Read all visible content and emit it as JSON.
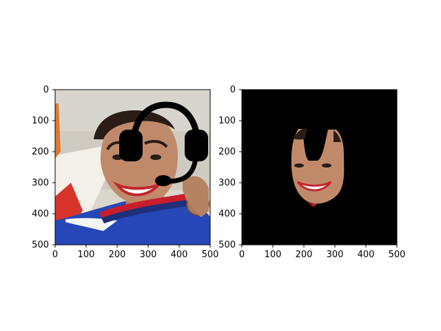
{
  "figure": {
    "background_color": "#ffffff",
    "panels": [
      {
        "id": "left",
        "content": "photo-with-headset-overlay",
        "x_ticks": [
          "0",
          "100",
          "200",
          "300",
          "400",
          "500"
        ],
        "y_ticks": [
          "0",
          "100",
          "200",
          "300",
          "400",
          "500"
        ],
        "image_background": "#d9d6cc"
      },
      {
        "id": "right",
        "content": "masked-face",
        "x_ticks": [
          "0",
          "100",
          "200",
          "300",
          "400",
          "500"
        ],
        "y_ticks": [
          "0",
          "100",
          "200",
          "300",
          "400",
          "500"
        ],
        "image_background": "#000000"
      }
    ],
    "headset_icon": "headset-icon",
    "colors": {
      "axis": "#000000",
      "skin": "#c08a6a",
      "hair": "#2a1c17",
      "shirt": "#2547b8",
      "ribbon_red": "#c81e2b",
      "ribbon_blue": "#1f2f7a",
      "medal": "#a77b55",
      "flag_red": "#d8332a",
      "mask": "#000000"
    }
  }
}
